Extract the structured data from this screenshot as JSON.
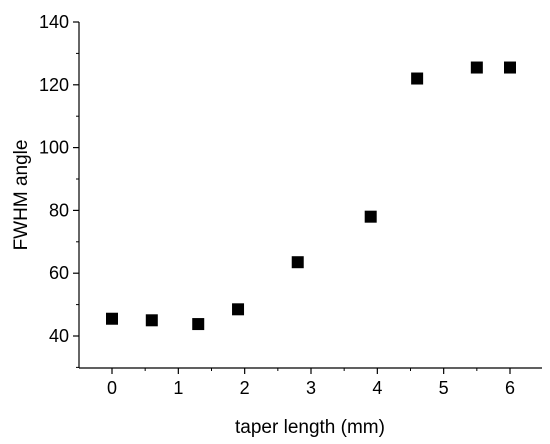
{
  "chart_data": {
    "type": "scatter",
    "title": "",
    "xlabel": "taper length (mm)",
    "ylabel": "FWHM angle",
    "xlim": [
      -0.5,
      6.5
    ],
    "ylim": [
      30,
      140
    ],
    "x_ticks": [
      0,
      1,
      2,
      3,
      4,
      5,
      6
    ],
    "y_ticks": [
      40,
      60,
      80,
      100,
      120,
      140
    ],
    "grid": false,
    "legend": false,
    "marker": "square",
    "marker_color": "#000000",
    "series": [
      {
        "x": [
          0,
          0.6,
          1.3,
          1.9,
          2.8,
          3.9,
          4.6,
          5.5,
          6.0
        ],
        "y": [
          45.5,
          45,
          43.8,
          48.5,
          63.5,
          78,
          122,
          125.5,
          125.5
        ]
      }
    ]
  }
}
